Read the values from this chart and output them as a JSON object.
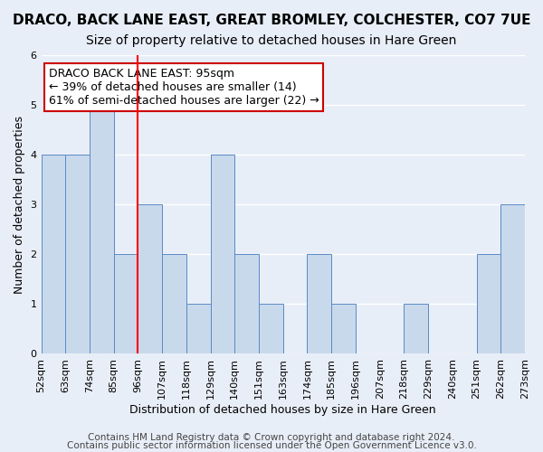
{
  "title": "DRACO, BACK LANE EAST, GREAT BROMLEY, COLCHESTER, CO7 7UE",
  "subtitle": "Size of property relative to detached houses in Hare Green",
  "xlabel": "Distribution of detached houses by size in Hare Green",
  "ylabel": "Number of detached properties",
  "bin_labels": [
    "52sqm",
    "63sqm",
    "74sqm",
    "85sqm",
    "96sqm",
    "107sqm",
    "118sqm",
    "129sqm",
    "140sqm",
    "151sqm",
    "163sqm",
    "174sqm",
    "185sqm",
    "196sqm",
    "207sqm",
    "218sqm",
    "229sqm",
    "240sqm",
    "251sqm",
    "262sqm",
    "273sqm"
  ],
  "bar_values": [
    4,
    4,
    5,
    2,
    3,
    2,
    1,
    4,
    2,
    1,
    0,
    2,
    1,
    0,
    0,
    1,
    0,
    0,
    2,
    3
  ],
  "bar_color": "#c9d9ec",
  "bar_edge_color": "#5a8ac6",
  "background_color": "#e8eef7",
  "grid_color": "#ffffff",
  "red_line_x": 4,
  "ylim": [
    0,
    6
  ],
  "yticks": [
    0,
    1,
    2,
    3,
    4,
    5,
    6
  ],
  "annotation_text": "DRACO BACK LANE EAST: 95sqm\n← 39% of detached houses are smaller (14)\n61% of semi-detached houses are larger (22) →",
  "annotation_box_color": "#ffffff",
  "annotation_box_edge_color": "#cc0000",
  "footer_line1": "Contains HM Land Registry data © Crown copyright and database right 2024.",
  "footer_line2": "Contains public sector information licensed under the Open Government Licence v3.0.",
  "title_fontsize": 11,
  "subtitle_fontsize": 10,
  "xlabel_fontsize": 9,
  "ylabel_fontsize": 9,
  "tick_fontsize": 8,
  "annotation_fontsize": 9,
  "footer_fontsize": 7.5
}
